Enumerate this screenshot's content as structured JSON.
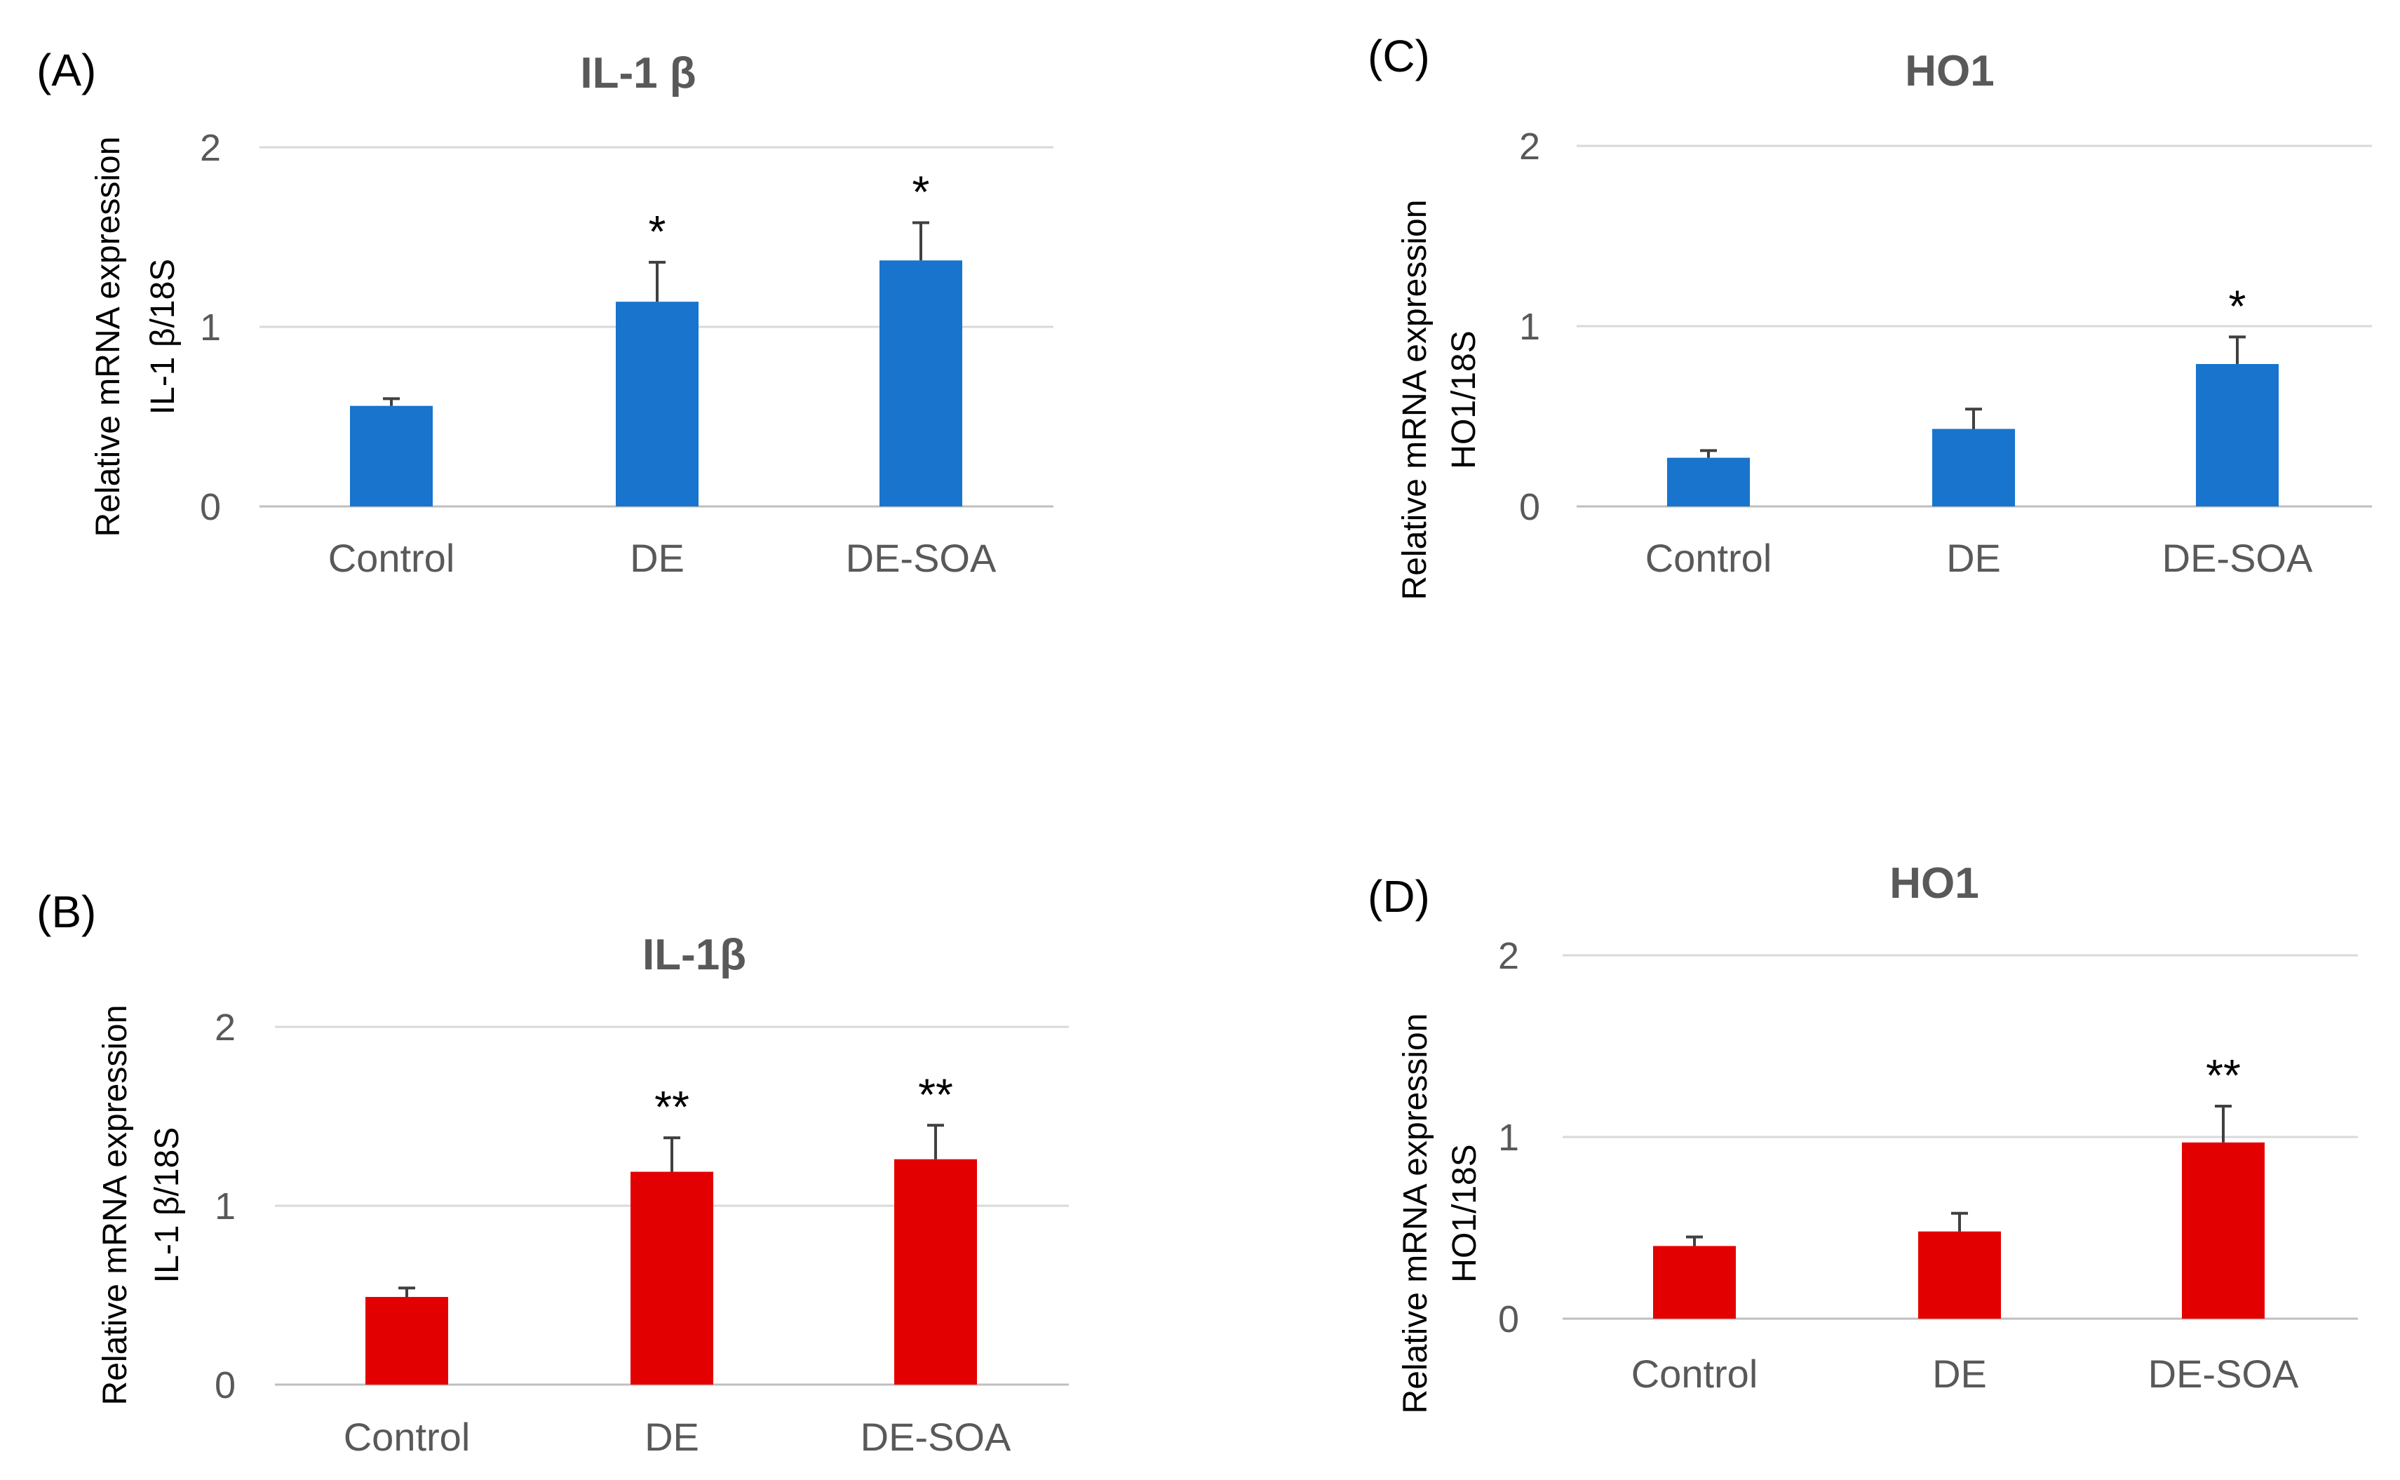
{
  "chart_data": [
    {
      "panel": "(A)",
      "type": "bar",
      "title": "IL-1 β",
      "ylabel_lines": [
        "Relative mRNA expression",
        "IL-1 β/18S"
      ],
      "xlabel": "",
      "categories": [
        "Control",
        "DE",
        "DE-SOA"
      ],
      "values": [
        0.56,
        1.14,
        1.37
      ],
      "errors": [
        0.04,
        0.22,
        0.21
      ],
      "significance": [
        "",
        "*",
        "*"
      ],
      "ylim": [
        0,
        2
      ],
      "yticks": [
        0,
        1,
        2
      ],
      "grid": true,
      "color": "#1874cd"
    },
    {
      "panel": "(B)",
      "type": "bar",
      "title": "IL-1β",
      "ylabel_lines": [
        "Relative mRNA expression",
        "IL-1 β/18S"
      ],
      "xlabel": "",
      "categories": [
        "Control",
        "DE",
        "DE-SOA"
      ],
      "values": [
        0.49,
        1.19,
        1.26
      ],
      "errors": [
        0.05,
        0.19,
        0.19
      ],
      "significance": [
        "",
        "**",
        "**"
      ],
      "ylim": [
        0,
        2
      ],
      "yticks": [
        0,
        1,
        2
      ],
      "grid": true,
      "color": "#e30000"
    },
    {
      "panel": "(C)",
      "type": "bar",
      "title": "HO1",
      "ylabel_lines": [
        "Relative mRNA expression",
        "HO1/18S"
      ],
      "xlabel": "",
      "categories": [
        "Control",
        "DE",
        "DE-SOA"
      ],
      "values": [
        0.27,
        0.43,
        0.79
      ],
      "errors": [
        0.04,
        0.11,
        0.15
      ],
      "significance": [
        "",
        "",
        "*"
      ],
      "ylim": [
        0,
        2
      ],
      "yticks": [
        0,
        1,
        2
      ],
      "grid": true,
      "color": "#1874cd"
    },
    {
      "panel": "(D)",
      "type": "bar",
      "title": "HO1",
      "ylabel_lines": [
        "Relative mRNA expression",
        "HO1/18S"
      ],
      "xlabel": "",
      "categories": [
        "Control",
        "DE",
        "DE-SOA"
      ],
      "values": [
        0.4,
        0.48,
        0.97
      ],
      "errors": [
        0.05,
        0.1,
        0.2
      ],
      "significance": [
        "",
        "",
        "**"
      ],
      "ylim": [
        0,
        2
      ],
      "yticks": [
        0,
        1,
        2
      ],
      "grid": true,
      "color": "#e30000"
    }
  ]
}
